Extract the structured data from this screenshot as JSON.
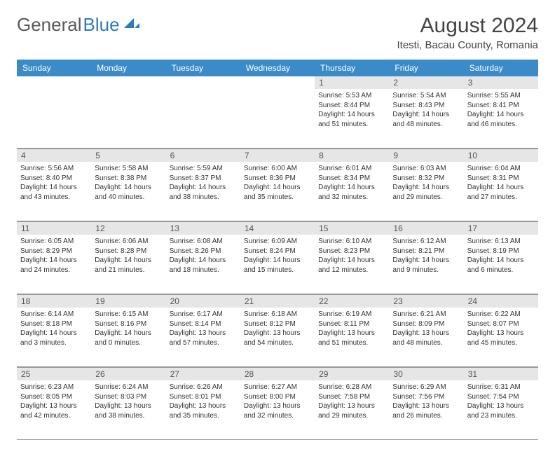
{
  "logo": {
    "text_gray": "General",
    "text_blue": "Blue",
    "gray_color": "#5a5a5a",
    "blue_color": "#2f7abf"
  },
  "title": "August 2024",
  "location": "Itesti, Bacau County, Romania",
  "header_bg": "#3b8bc9",
  "band_bg": "#e6e6e6",
  "weekdays": [
    "Sunday",
    "Monday",
    "Tuesday",
    "Wednesday",
    "Thursday",
    "Friday",
    "Saturday"
  ],
  "weeks": [
    [
      {
        "num": "",
        "sunrise": "",
        "sunset": "",
        "daylight": ""
      },
      {
        "num": "",
        "sunrise": "",
        "sunset": "",
        "daylight": ""
      },
      {
        "num": "",
        "sunrise": "",
        "sunset": "",
        "daylight": ""
      },
      {
        "num": "",
        "sunrise": "",
        "sunset": "",
        "daylight": ""
      },
      {
        "num": "1",
        "sunrise": "Sunrise: 5:53 AM",
        "sunset": "Sunset: 8:44 PM",
        "daylight": "Daylight: 14 hours and 51 minutes."
      },
      {
        "num": "2",
        "sunrise": "Sunrise: 5:54 AM",
        "sunset": "Sunset: 8:43 PM",
        "daylight": "Daylight: 14 hours and 48 minutes."
      },
      {
        "num": "3",
        "sunrise": "Sunrise: 5:55 AM",
        "sunset": "Sunset: 8:41 PM",
        "daylight": "Daylight: 14 hours and 46 minutes."
      }
    ],
    [
      {
        "num": "4",
        "sunrise": "Sunrise: 5:56 AM",
        "sunset": "Sunset: 8:40 PM",
        "daylight": "Daylight: 14 hours and 43 minutes."
      },
      {
        "num": "5",
        "sunrise": "Sunrise: 5:58 AM",
        "sunset": "Sunset: 8:38 PM",
        "daylight": "Daylight: 14 hours and 40 minutes."
      },
      {
        "num": "6",
        "sunrise": "Sunrise: 5:59 AM",
        "sunset": "Sunset: 8:37 PM",
        "daylight": "Daylight: 14 hours and 38 minutes."
      },
      {
        "num": "7",
        "sunrise": "Sunrise: 6:00 AM",
        "sunset": "Sunset: 8:36 PM",
        "daylight": "Daylight: 14 hours and 35 minutes."
      },
      {
        "num": "8",
        "sunrise": "Sunrise: 6:01 AM",
        "sunset": "Sunset: 8:34 PM",
        "daylight": "Daylight: 14 hours and 32 minutes."
      },
      {
        "num": "9",
        "sunrise": "Sunrise: 6:03 AM",
        "sunset": "Sunset: 8:32 PM",
        "daylight": "Daylight: 14 hours and 29 minutes."
      },
      {
        "num": "10",
        "sunrise": "Sunrise: 6:04 AM",
        "sunset": "Sunset: 8:31 PM",
        "daylight": "Daylight: 14 hours and 27 minutes."
      }
    ],
    [
      {
        "num": "11",
        "sunrise": "Sunrise: 6:05 AM",
        "sunset": "Sunset: 8:29 PM",
        "daylight": "Daylight: 14 hours and 24 minutes."
      },
      {
        "num": "12",
        "sunrise": "Sunrise: 6:06 AM",
        "sunset": "Sunset: 8:28 PM",
        "daylight": "Daylight: 14 hours and 21 minutes."
      },
      {
        "num": "13",
        "sunrise": "Sunrise: 6:08 AM",
        "sunset": "Sunset: 8:26 PM",
        "daylight": "Daylight: 14 hours and 18 minutes."
      },
      {
        "num": "14",
        "sunrise": "Sunrise: 6:09 AM",
        "sunset": "Sunset: 8:24 PM",
        "daylight": "Daylight: 14 hours and 15 minutes."
      },
      {
        "num": "15",
        "sunrise": "Sunrise: 6:10 AM",
        "sunset": "Sunset: 8:23 PM",
        "daylight": "Daylight: 14 hours and 12 minutes."
      },
      {
        "num": "16",
        "sunrise": "Sunrise: 6:12 AM",
        "sunset": "Sunset: 8:21 PM",
        "daylight": "Daylight: 14 hours and 9 minutes."
      },
      {
        "num": "17",
        "sunrise": "Sunrise: 6:13 AM",
        "sunset": "Sunset: 8:19 PM",
        "daylight": "Daylight: 14 hours and 6 minutes."
      }
    ],
    [
      {
        "num": "18",
        "sunrise": "Sunrise: 6:14 AM",
        "sunset": "Sunset: 8:18 PM",
        "daylight": "Daylight: 14 hours and 3 minutes."
      },
      {
        "num": "19",
        "sunrise": "Sunrise: 6:15 AM",
        "sunset": "Sunset: 8:16 PM",
        "daylight": "Daylight: 14 hours and 0 minutes."
      },
      {
        "num": "20",
        "sunrise": "Sunrise: 6:17 AM",
        "sunset": "Sunset: 8:14 PM",
        "daylight": "Daylight: 13 hours and 57 minutes."
      },
      {
        "num": "21",
        "sunrise": "Sunrise: 6:18 AM",
        "sunset": "Sunset: 8:12 PM",
        "daylight": "Daylight: 13 hours and 54 minutes."
      },
      {
        "num": "22",
        "sunrise": "Sunrise: 6:19 AM",
        "sunset": "Sunset: 8:11 PM",
        "daylight": "Daylight: 13 hours and 51 minutes."
      },
      {
        "num": "23",
        "sunrise": "Sunrise: 6:21 AM",
        "sunset": "Sunset: 8:09 PM",
        "daylight": "Daylight: 13 hours and 48 minutes."
      },
      {
        "num": "24",
        "sunrise": "Sunrise: 6:22 AM",
        "sunset": "Sunset: 8:07 PM",
        "daylight": "Daylight: 13 hours and 45 minutes."
      }
    ],
    [
      {
        "num": "25",
        "sunrise": "Sunrise: 6:23 AM",
        "sunset": "Sunset: 8:05 PM",
        "daylight": "Daylight: 13 hours and 42 minutes."
      },
      {
        "num": "26",
        "sunrise": "Sunrise: 6:24 AM",
        "sunset": "Sunset: 8:03 PM",
        "daylight": "Daylight: 13 hours and 38 minutes."
      },
      {
        "num": "27",
        "sunrise": "Sunrise: 6:26 AM",
        "sunset": "Sunset: 8:01 PM",
        "daylight": "Daylight: 13 hours and 35 minutes."
      },
      {
        "num": "28",
        "sunrise": "Sunrise: 6:27 AM",
        "sunset": "Sunset: 8:00 PM",
        "daylight": "Daylight: 13 hours and 32 minutes."
      },
      {
        "num": "29",
        "sunrise": "Sunrise: 6:28 AM",
        "sunset": "Sunset: 7:58 PM",
        "daylight": "Daylight: 13 hours and 29 minutes."
      },
      {
        "num": "30",
        "sunrise": "Sunrise: 6:29 AM",
        "sunset": "Sunset: 7:56 PM",
        "daylight": "Daylight: 13 hours and 26 minutes."
      },
      {
        "num": "31",
        "sunrise": "Sunrise: 6:31 AM",
        "sunset": "Sunset: 7:54 PM",
        "daylight": "Daylight: 13 hours and 23 minutes."
      }
    ]
  ]
}
